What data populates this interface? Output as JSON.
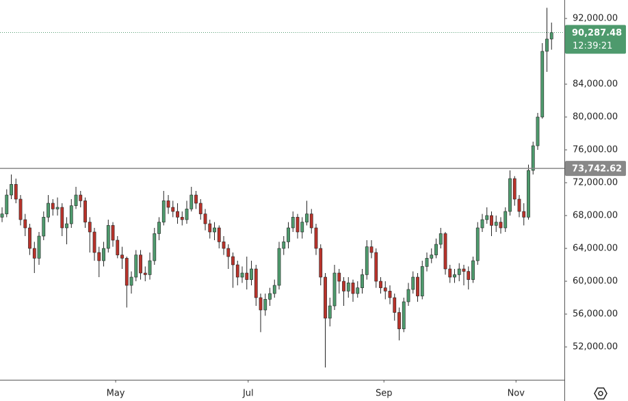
{
  "chart_data": {
    "type": "candlestick",
    "open": [
      67800,
      68200,
      70500,
      71800,
      70000,
      67500,
      66500,
      64000,
      62800,
      65500,
      67800,
      69500,
      68800,
      69000,
      66500,
      67000,
      69200,
      70500,
      69800,
      67200,
      66000,
      63500,
      62500,
      64000,
      66800,
      65000,
      63200,
      62800,
      59500,
      60500,
      63200,
      61000,
      60800,
      62500,
      65800,
      67200,
      69800,
      69000,
      68500,
      67800,
      67500,
      68800,
      70500,
      69500,
      68200,
      67000,
      66000,
      66500,
      64800,
      64000,
      63000,
      62000,
      60500,
      61000,
      60200,
      61500,
      58000,
      56500,
      57800,
      58500,
      59500,
      64000,
      64800,
      66500,
      67800,
      66000,
      67200,
      68200,
      66500,
      64000,
      60500,
      55500,
      57000,
      61000,
      60000,
      58800,
      59800,
      58500,
      59200,
      60800,
      64200,
      63500,
      60000,
      59200,
      58800,
      58000,
      56200,
      54200,
      57500,
      59000,
      60500,
      58200,
      61800,
      62800,
      63200,
      64500,
      65800,
      61500,
      60500,
      60800,
      61500,
      61200,
      60200,
      62500,
      66500,
      67500,
      68000,
      66800,
      67200,
      66500,
      68500,
      72500,
      70000,
      68500,
      67800,
      73500,
      76500,
      80000,
      88000,
      89500
    ],
    "high": [
      69000,
      71200,
      73000,
      72500,
      70500,
      68200,
      67000,
      64800,
      66000,
      68500,
      70500,
      70000,
      70200,
      69500,
      67800,
      70000,
      71500,
      71000,
      70200,
      67800,
      66500,
      64200,
      64800,
      67500,
      67200,
      65500,
      64200,
      63000,
      61200,
      63800,
      63800,
      61800,
      63500,
      66500,
      67800,
      71000,
      70500,
      69800,
      69500,
      68500,
      69800,
      71500,
      71000,
      70000,
      68800,
      67500,
      67200,
      66800,
      65500,
      64500,
      63500,
      62500,
      61800,
      63000,
      62500,
      62000,
      58500,
      58500,
      59200,
      60200,
      64800,
      65500,
      67200,
      68500,
      68200,
      67800,
      69800,
      68800,
      67000,
      64500,
      61000,
      58000,
      62000,
      61500,
      60500,
      60500,
      60200,
      60000,
      61500,
      65000,
      65000,
      64000,
      60500,
      60000,
      59500,
      58500,
      56800,
      58000,
      59800,
      61200,
      61000,
      62500,
      63500,
      64000,
      65200,
      66500,
      66000,
      62000,
      61500,
      62200,
      62000,
      61800,
      63000,
      67200,
      68200,
      69000,
      68500,
      68000,
      67800,
      69000,
      73500,
      72800,
      70500,
      69500,
      74200,
      77000,
      80500,
      89000,
      93300,
      91500
    ],
    "low": [
      67200,
      67800,
      70000,
      69500,
      66800,
      65500,
      63200,
      61000,
      62000,
      65000,
      67200,
      68000,
      68000,
      65500,
      64500,
      66500,
      68800,
      69000,
      66500,
      63500,
      62500,
      60500,
      61800,
      63500,
      64200,
      62800,
      61500,
      56800,
      58500,
      60000,
      60200,
      60000,
      60200,
      62000,
      65000,
      66800,
      68200,
      67800,
      67000,
      66800,
      67000,
      68500,
      68800,
      67500,
      66200,
      65200,
      65000,
      64000,
      63200,
      61500,
      59200,
      59500,
      59800,
      59000,
      59500,
      57000,
      53800,
      55800,
      57000,
      58000,
      59000,
      63200,
      64000,
      66000,
      65200,
      65200,
      66800,
      65800,
      63200,
      59500,
      49500,
      54500,
      56500,
      58500,
      57000,
      58000,
      57500,
      58000,
      58500,
      60200,
      62800,
      59200,
      58500,
      57800,
      57200,
      55200,
      52800,
      53800,
      57000,
      58500,
      57500,
      57800,
      61200,
      62200,
      62800,
      64000,
      60800,
      59800,
      59800,
      60000,
      59500,
      59000,
      59800,
      62000,
      66000,
      67000,
      65500,
      66000,
      65800,
      66000,
      68000,
      69200,
      67800,
      66800,
      67500,
      73000,
      76000,
      79800,
      85500,
      88200
    ],
    "close": [
      68200,
      70500,
      71800,
      70000,
      67500,
      66500,
      64000,
      62800,
      65500,
      67800,
      69500,
      68800,
      69000,
      66500,
      67000,
      69200,
      70500,
      69800,
      67200,
      66000,
      63500,
      62500,
      64000,
      66800,
      65000,
      63200,
      62800,
      59500,
      60500,
      63200,
      61000,
      60800,
      62500,
      65800,
      67200,
      69800,
      69000,
      68500,
      67800,
      67500,
      68800,
      70500,
      69500,
      68200,
      67000,
      66000,
      66500,
      64800,
      64000,
      63000,
      62000,
      60500,
      61000,
      60200,
      61500,
      58000,
      56500,
      57800,
      58500,
      59500,
      64000,
      64800,
      66500,
      67800,
      66000,
      67200,
      68200,
      66500,
      64000,
      60500,
      55500,
      57000,
      61000,
      60000,
      58800,
      59800,
      58500,
      59200,
      60800,
      64200,
      63500,
      60000,
      59200,
      58800,
      58000,
      56200,
      54200,
      57500,
      59000,
      60500,
      58200,
      61800,
      62800,
      63200,
      64500,
      65800,
      61500,
      60500,
      60800,
      61500,
      61200,
      60200,
      62500,
      66500,
      67500,
      68000,
      66800,
      67200,
      66500,
      68500,
      72500,
      70000,
      68500,
      67800,
      73500,
      76500,
      80000,
      88000,
      89500,
      90287.48
    ],
    "up_color": "#4e9a6d",
    "down_color": "#b8332b",
    "wick_color": "#222222",
    "xlim": [
      -0.45,
      121.78
    ],
    "xticks": [
      {
        "value": 24.6,
        "label": "May"
      },
      {
        "value": 53.3,
        "label": "Jul"
      },
      {
        "value": 82.7,
        "label": "Sep"
      },
      {
        "value": 111.3,
        "label": "Nov"
      }
    ],
    "ylim": [
      48000,
      94250
    ],
    "yticks": [
      {
        "value": 92000,
        "label": "92,000.00"
      },
      {
        "value": 84000,
        "label": "84,000.00"
      },
      {
        "value": 80000,
        "label": "80,000.00"
      },
      {
        "value": 76000,
        "label": "76,000.00"
      },
      {
        "value": 72000,
        "label": "72,000.00"
      },
      {
        "value": 68000,
        "label": "68,000.00"
      },
      {
        "value": 64000,
        "label": "64,000.00"
      },
      {
        "value": 60000,
        "label": "60,000.00"
      },
      {
        "value": 56000,
        "label": "56,000.00"
      },
      {
        "value": 52000,
        "label": "52,000.00"
      }
    ],
    "price_line": {
      "value": 73742.62,
      "label": "73,742.62",
      "color": "#888888"
    },
    "last_price": {
      "value": 90287.48,
      "label": "90,287.48",
      "countdown": "12:39:21",
      "color": "#4e9a6d"
    }
  }
}
